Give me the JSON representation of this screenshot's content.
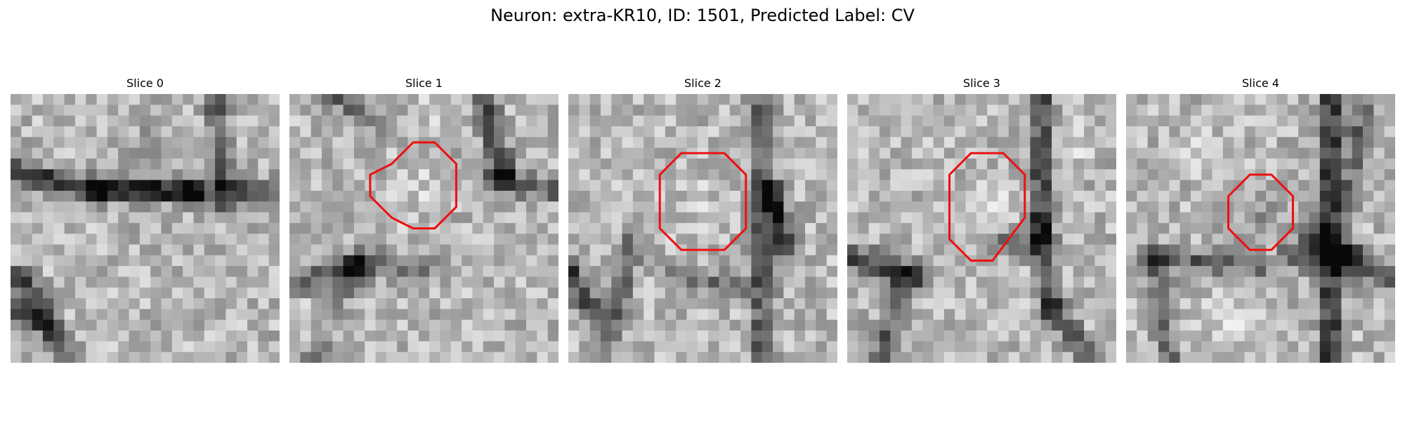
{
  "figure": {
    "title": "Neuron: extra-KR10, ID: 1501, Predicted Label: CV",
    "contour_color": "#ee1111",
    "colormap": "grayscale"
  },
  "panels": [
    {
      "title": "Slice 0",
      "contour": []
    },
    {
      "title": "Slice 1",
      "contour": [
        [
          11.5,
          4.5
        ],
        [
          13.5,
          4.5
        ],
        [
          15.5,
          6.5
        ],
        [
          15.5,
          10.5
        ],
        [
          13.5,
          12.5
        ],
        [
          11.5,
          12.5
        ],
        [
          10.5,
          12
        ],
        [
          9.5,
          11.5
        ],
        [
          7.5,
          9.5
        ],
        [
          7.5,
          7.5
        ],
        [
          9.5,
          6.5
        ]
      ]
    },
    {
      "title": "Slice 2",
      "contour": [
        [
          10.5,
          5.5
        ],
        [
          14.5,
          5.5
        ],
        [
          16.5,
          7.5
        ],
        [
          16.5,
          12.5
        ],
        [
          14.5,
          14.5
        ],
        [
          10.5,
          14.5
        ],
        [
          8.5,
          12.5
        ],
        [
          8.5,
          7.5
        ]
      ]
    },
    {
      "title": "Slice 3",
      "contour": [
        [
          11.5,
          5.5
        ],
        [
          14.5,
          5.5
        ],
        [
          16.5,
          7.5
        ],
        [
          16.5,
          11.5
        ],
        [
          13.5,
          15.5
        ],
        [
          11.5,
          15.5
        ],
        [
          9.5,
          13.5
        ],
        [
          9.5,
          7.5
        ]
      ]
    },
    {
      "title": "Slice 4",
      "contour": [
        [
          11.5,
          7.5
        ],
        [
          13.5,
          7.5
        ],
        [
          15.5,
          9.5
        ],
        [
          15.5,
          12.5
        ],
        [
          13.5,
          14.5
        ],
        [
          11.5,
          14.5
        ],
        [
          9.5,
          12.5
        ],
        [
          9.5,
          9.5
        ]
      ]
    }
  ]
}
